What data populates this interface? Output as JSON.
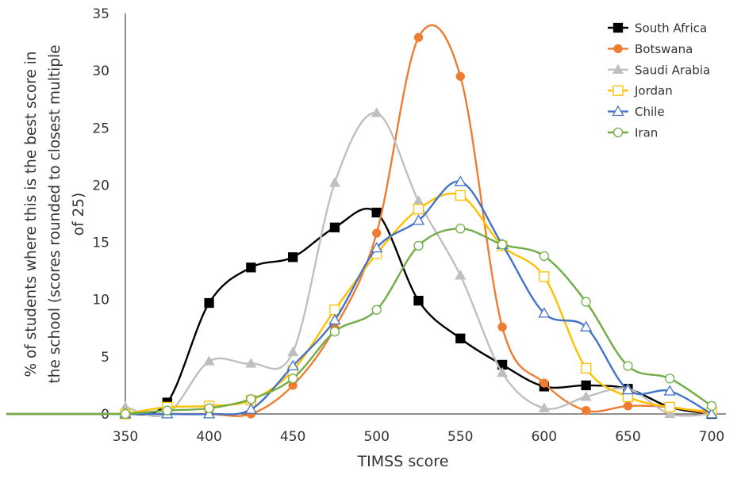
{
  "chart_data": {
    "type": "line",
    "smoothed": true,
    "xlabel": "TIMSS score",
    "ylabel_lines": [
      "% of students where this is the best score in",
      "the school (scores rounded to closest multiple",
      "of 25)"
    ],
    "x": [
      350,
      375,
      400,
      425,
      450,
      475,
      500,
      525,
      550,
      575,
      600,
      625,
      650,
      675,
      700
    ],
    "x_ticks": [
      "350",
      "400",
      "450",
      "500",
      "550",
      "600",
      "650",
      "700"
    ],
    "x_tick_values": [
      350,
      400,
      450,
      500,
      550,
      600,
      650,
      700
    ],
    "y_ticks": [
      "0",
      "5",
      "10",
      "15",
      "20",
      "25",
      "30",
      "35"
    ],
    "y_tick_values": [
      0,
      5,
      10,
      15,
      20,
      25,
      30,
      35
    ],
    "ylim": [
      0,
      35
    ],
    "grid": false,
    "legend_position": "top-right",
    "series": [
      {
        "name": "South Africa",
        "color": "#000000",
        "marker": "square-filled",
        "values": [
          0,
          1.0,
          9.7,
          12.8,
          13.7,
          16.3,
          17.6,
          9.9,
          6.6,
          4.3,
          2.4,
          2.5,
          2.2,
          0.6,
          0
        ]
      },
      {
        "name": "Botswana",
        "color": "#ED7D31",
        "marker": "circle-filled",
        "values": [
          0,
          0,
          0,
          0,
          2.5,
          7.5,
          15.8,
          32.9,
          29.5,
          7.6,
          2.7,
          0.3,
          0.7,
          0.6,
          0
        ]
      },
      {
        "name": "Saudi Arabia",
        "color": "#BFBFBF",
        "marker": "triangle-filled",
        "values": [
          0.6,
          0,
          4.6,
          4.4,
          5.4,
          20.2,
          26.3,
          18.6,
          12.1,
          3.6,
          0.5,
          1.5,
          2.2,
          0,
          0
        ]
      },
      {
        "name": "Jordan",
        "color": "#FFC000",
        "marker": "square-open",
        "values": [
          0,
          0.6,
          0.7,
          1.2,
          3.8,
          9.1,
          14.0,
          17.9,
          19.1,
          14.7,
          12.0,
          4.0,
          1.5,
          0.6,
          0.2
        ]
      },
      {
        "name": "Chile",
        "color": "#4472C4",
        "marker": "triangle-open",
        "values": [
          0,
          0,
          0,
          0.4,
          4.2,
          8.2,
          14.5,
          16.9,
          20.3,
          14.8,
          8.8,
          7.6,
          2.1,
          2.0,
          0
        ]
      },
      {
        "name": "Iran",
        "color": "#70AD47",
        "marker": "circle-open",
        "values": [
          0,
          0.3,
          0.5,
          1.3,
          3.1,
          7.2,
          9.1,
          14.7,
          16.2,
          14.8,
          13.8,
          9.8,
          4.2,
          3.1,
          0.7
        ]
      }
    ]
  }
}
